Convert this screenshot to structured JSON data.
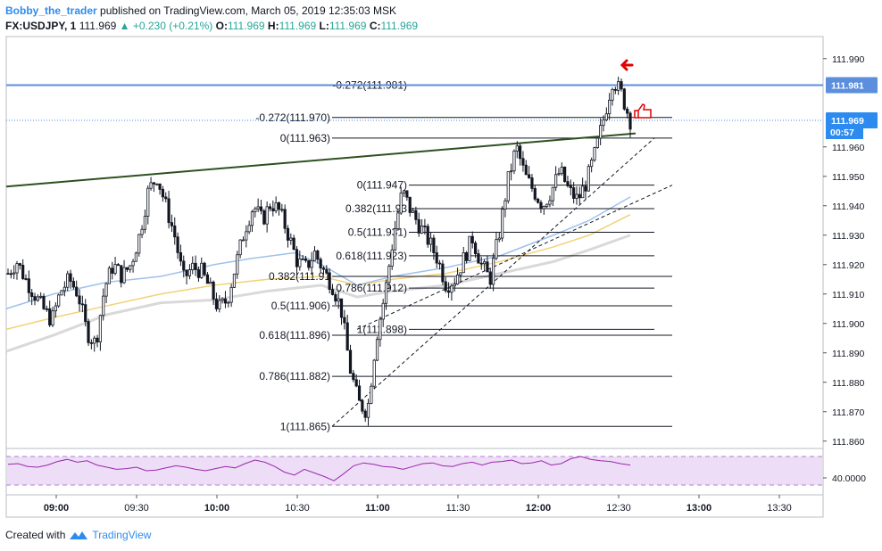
{
  "header": {
    "username": "Bobby_the_trader",
    "published_text": "published on TradingView.com, March 05, 2019 12:35:03 MSK",
    "symbol": "FX:USDJPY, 1",
    "last": "111.969",
    "change": "▲ +0.230 (+0.21%)",
    "o_label": "O:",
    "o_val": "111.969",
    "h_label": "H:",
    "h_val": "111.969",
    "l_label": "L:",
    "l_val": "111.969",
    "c_label": "C:",
    "c_val": "111.969"
  },
  "footer": {
    "created_with": "Created with",
    "brand": "TradingView"
  },
  "colors": {
    "candle_up": "#ffffff",
    "candle_down": "#131722",
    "wick": "#131722",
    "hline_blue": "#5b8fdd",
    "trendline": "#2f5020",
    "ma_blue": "#9fc1ec",
    "ma_yellow": "#f2d277",
    "ma_gray": "#d9d9d9",
    "rsi_line": "#9c27b0",
    "rsi_band": "#eeddf6",
    "arrow": "#e00000"
  },
  "chart_data": {
    "type": "candlestick",
    "symbol": "USDJPY",
    "y_ticks": [
      "111.990",
      "111.960",
      "111.950",
      "111.940",
      "111.930",
      "111.920",
      "111.910",
      "111.900",
      "111.890",
      "111.880",
      "111.870",
      "111.860"
    ],
    "x_ticks": [
      "09:00",
      "09:30",
      "10:00",
      "10:30",
      "11:00",
      "11:30",
      "12:00",
      "12:30",
      "13:00",
      "13:30"
    ],
    "ylim": [
      111.8575,
      111.9975
    ],
    "price_labels": {
      "blue_line": "111.981",
      "last_price": "111.969",
      "countdown": "00:57"
    },
    "fib_left": [
      {
        "label": "-0.272(111.970)",
        "price": 111.97
      },
      {
        "label": "0(111.963)",
        "price": 111.963
      },
      {
        "label": "0.382(111.91",
        "price": 111.916
      },
      {
        "label": "0.5(111.906)",
        "price": 111.906
      },
      {
        "label": "0.618(111.896)",
        "price": 111.896
      },
      {
        "label": "0.786(111.882)",
        "price": 111.882
      },
      {
        "label": "1(111.865)",
        "price": 111.865
      }
    ],
    "fib_right": [
      {
        "label": "-0.272(111.981)",
        "price": 111.981
      },
      {
        "label": "0(111.947)",
        "price": 111.947
      },
      {
        "label": "0.382(111.93",
        "price": 111.939
      },
      {
        "label": "0.5(111.931)",
        "price": 111.931
      },
      {
        "label": "0.618(111.923)",
        "price": 111.923
      },
      {
        "label": "0.786(111.912)",
        "price": 111.912
      },
      {
        "label": "1(111.898)",
        "price": 111.898
      }
    ],
    "close_path": [
      111.917,
      111.921,
      111.915,
      111.91,
      111.905,
      111.901,
      111.911,
      111.915,
      111.91,
      111.897,
      111.893,
      111.912,
      111.92,
      111.916,
      111.92,
      111.93,
      111.945,
      111.95,
      111.94,
      111.93,
      111.915,
      111.919,
      111.918,
      111.912,
      111.905,
      111.908,
      111.92,
      111.932,
      111.94,
      111.935,
      111.941,
      111.938,
      111.93,
      111.921,
      111.919,
      111.924,
      111.918,
      111.913,
      111.905,
      111.885,
      111.873,
      111.87,
      111.895,
      111.91,
      111.93,
      111.945,
      111.938,
      111.933,
      111.928,
      111.922,
      111.913,
      111.915,
      111.922,
      111.929,
      111.92,
      111.915,
      111.93,
      111.948,
      111.96,
      111.95,
      111.945,
      111.94,
      111.945,
      111.952,
      111.945,
      111.942,
      111.948,
      111.958,
      111.97,
      111.983,
      111.978,
      111.969
    ],
    "rsi": {
      "ylabel": "40.0000",
      "values": [
        59,
        60,
        56,
        55,
        58,
        63,
        66,
        62,
        64,
        58,
        55,
        52,
        53,
        55,
        50,
        51,
        54,
        57,
        55,
        52,
        50,
        53,
        56,
        54,
        60,
        65,
        62,
        56,
        48,
        44,
        52,
        47,
        42,
        36,
        46,
        57,
        61,
        59,
        56,
        55,
        52,
        56,
        60,
        61,
        57,
        56,
        60,
        62,
        58,
        62,
        63,
        65,
        60,
        61,
        64,
        58,
        60,
        67,
        70,
        66,
        64,
        63,
        60,
        58
      ]
    }
  }
}
